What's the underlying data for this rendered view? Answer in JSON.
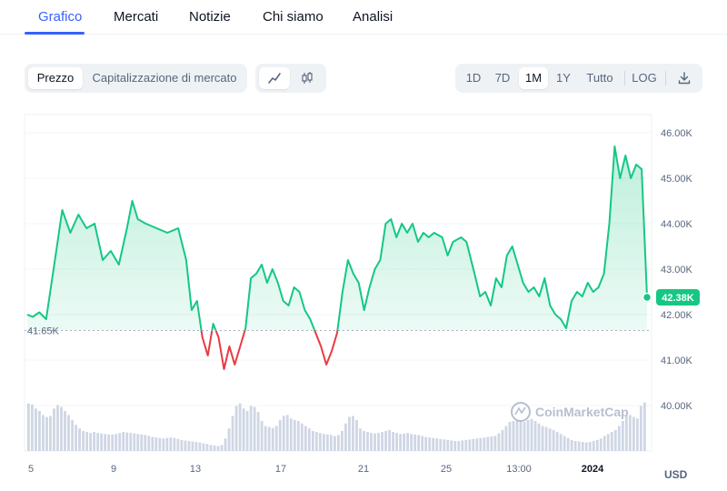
{
  "tabs": [
    {
      "label": "Grafico",
      "active": true
    },
    {
      "label": "Mercati",
      "active": false
    },
    {
      "label": "Notizie",
      "active": false
    },
    {
      "label": "Chi siamo",
      "active": false
    },
    {
      "label": "Analisi",
      "active": false
    }
  ],
  "toolbar": {
    "price_label": "Prezzo",
    "mcap_label": "Capitalizzazione di mercato",
    "line_icon": "line-chart-icon",
    "candle_icon": "candlestick-icon",
    "ranges": [
      "1D",
      "7D",
      "1M",
      "1Y",
      "Tutto"
    ],
    "active_range": "1M",
    "log_label": "LOG",
    "download_icon": "download-icon"
  },
  "chart_data": {
    "type": "area",
    "currency": "USD",
    "x_ticks": [
      "5",
      "9",
      "13",
      "17",
      "21",
      "25",
      "13:00",
      "2024"
    ],
    "y_ticks": [
      "40.00K",
      "41.00K",
      "42.00K",
      "43.00K",
      "44.00K",
      "45.00K",
      "46.00K"
    ],
    "ylim": [
      40000,
      46000
    ],
    "baseline_label": "41.65K",
    "baseline_value": 41650,
    "current_label": "42.38K",
    "current_value": 42380,
    "colors": {
      "up": "#16c784",
      "down": "#ea3943",
      "volume": "#cfd6e4"
    },
    "watermark": "CoinMarketCap",
    "series": [
      {
        "t": 0.0,
        "v": 42000
      },
      {
        "t": 0.2,
        "v": 41950
      },
      {
        "t": 0.45,
        "v": 42050
      },
      {
        "t": 0.7,
        "v": 41900
      },
      {
        "t": 1.0,
        "v": 43100
      },
      {
        "t": 1.3,
        "v": 44300
      },
      {
        "t": 1.6,
        "v": 43800
      },
      {
        "t": 1.9,
        "v": 44200
      },
      {
        "t": 2.2,
        "v": 43900
      },
      {
        "t": 2.5,
        "v": 44000
      },
      {
        "t": 2.8,
        "v": 43200
      },
      {
        "t": 3.1,
        "v": 43400
      },
      {
        "t": 3.4,
        "v": 43100
      },
      {
        "t": 3.7,
        "v": 43900
      },
      {
        "t": 3.9,
        "v": 44500
      },
      {
        "t": 4.1,
        "v": 44100
      },
      {
        "t": 4.4,
        "v": 44000
      },
      {
        "t": 4.8,
        "v": 43900
      },
      {
        "t": 5.2,
        "v": 43800
      },
      {
        "t": 5.6,
        "v": 43900
      },
      {
        "t": 5.9,
        "v": 43200
      },
      {
        "t": 6.1,
        "v": 42100
      },
      {
        "t": 6.3,
        "v": 42300
      },
      {
        "t": 6.5,
        "v": 41500
      },
      {
        "t": 6.7,
        "v": 41100
      },
      {
        "t": 6.9,
        "v": 41800
      },
      {
        "t": 7.1,
        "v": 41500
      },
      {
        "t": 7.3,
        "v": 40800
      },
      {
        "t": 7.5,
        "v": 41300
      },
      {
        "t": 7.7,
        "v": 40900
      },
      {
        "t": 7.9,
        "v": 41300
      },
      {
        "t": 8.1,
        "v": 41700
      },
      {
        "t": 8.3,
        "v": 42800
      },
      {
        "t": 8.5,
        "v": 42900
      },
      {
        "t": 8.7,
        "v": 43100
      },
      {
        "t": 8.9,
        "v": 42700
      },
      {
        "t": 9.1,
        "v": 43000
      },
      {
        "t": 9.3,
        "v": 42700
      },
      {
        "t": 9.5,
        "v": 42300
      },
      {
        "t": 9.7,
        "v": 42200
      },
      {
        "t": 9.9,
        "v": 42600
      },
      {
        "t": 10.1,
        "v": 42500
      },
      {
        "t": 10.3,
        "v": 42100
      },
      {
        "t": 10.5,
        "v": 41900
      },
      {
        "t": 10.7,
        "v": 41600
      },
      {
        "t": 10.9,
        "v": 41300
      },
      {
        "t": 11.1,
        "v": 40900
      },
      {
        "t": 11.3,
        "v": 41200
      },
      {
        "t": 11.5,
        "v": 41600
      },
      {
        "t": 11.7,
        "v": 42500
      },
      {
        "t": 11.9,
        "v": 43200
      },
      {
        "t": 12.1,
        "v": 42900
      },
      {
        "t": 12.3,
        "v": 42700
      },
      {
        "t": 12.5,
        "v": 42100
      },
      {
        "t": 12.7,
        "v": 42600
      },
      {
        "t": 12.9,
        "v": 43000
      },
      {
        "t": 13.1,
        "v": 43200
      },
      {
        "t": 13.3,
        "v": 44000
      },
      {
        "t": 13.5,
        "v": 44100
      },
      {
        "t": 13.7,
        "v": 43700
      },
      {
        "t": 13.9,
        "v": 44000
      },
      {
        "t": 14.1,
        "v": 43800
      },
      {
        "t": 14.3,
        "v": 44000
      },
      {
        "t": 14.5,
        "v": 43600
      },
      {
        "t": 14.7,
        "v": 43800
      },
      {
        "t": 14.9,
        "v": 43700
      },
      {
        "t": 15.1,
        "v": 43800
      },
      {
        "t": 15.4,
        "v": 43700
      },
      {
        "t": 15.6,
        "v": 43300
      },
      {
        "t": 15.8,
        "v": 43600
      },
      {
        "t": 16.1,
        "v": 43700
      },
      {
        "t": 16.3,
        "v": 43600
      },
      {
        "t": 16.6,
        "v": 42900
      },
      {
        "t": 16.8,
        "v": 42400
      },
      {
        "t": 17.0,
        "v": 42500
      },
      {
        "t": 17.2,
        "v": 42200
      },
      {
        "t": 17.4,
        "v": 42800
      },
      {
        "t": 17.6,
        "v": 42600
      },
      {
        "t": 17.8,
        "v": 43300
      },
      {
        "t": 18.0,
        "v": 43500
      },
      {
        "t": 18.2,
        "v": 43100
      },
      {
        "t": 18.4,
        "v": 42700
      },
      {
        "t": 18.6,
        "v": 42500
      },
      {
        "t": 18.8,
        "v": 42600
      },
      {
        "t": 19.0,
        "v": 42400
      },
      {
        "t": 19.2,
        "v": 42800
      },
      {
        "t": 19.4,
        "v": 42200
      },
      {
        "t": 19.6,
        "v": 42000
      },
      {
        "t": 19.8,
        "v": 41900
      },
      {
        "t": 20.0,
        "v": 41700
      },
      {
        "t": 20.2,
        "v": 42300
      },
      {
        "t": 20.4,
        "v": 42500
      },
      {
        "t": 20.6,
        "v": 42400
      },
      {
        "t": 20.8,
        "v": 42700
      },
      {
        "t": 21.0,
        "v": 42500
      },
      {
        "t": 21.2,
        "v": 42600
      },
      {
        "t": 21.4,
        "v": 42900
      },
      {
        "t": 21.6,
        "v": 44000
      },
      {
        "t": 21.8,
        "v": 45700
      },
      {
        "t": 22.0,
        "v": 45000
      },
      {
        "t": 22.2,
        "v": 45500
      },
      {
        "t": 22.4,
        "v": 45000
      },
      {
        "t": 22.6,
        "v": 45300
      },
      {
        "t": 22.8,
        "v": 45200
      },
      {
        "t": 23.0,
        "v": 42380
      }
    ],
    "volume": [
      0.95,
      0.93,
      0.85,
      0.8,
      0.72,
      0.68,
      0.7,
      0.85,
      0.92,
      0.88,
      0.8,
      0.72,
      0.62,
      0.52,
      0.45,
      0.4,
      0.38,
      0.36,
      0.38,
      0.36,
      0.35,
      0.34,
      0.33,
      0.33,
      0.34,
      0.36,
      0.38,
      0.37,
      0.36,
      0.35,
      0.34,
      0.33,
      0.32,
      0.3,
      0.28,
      0.27,
      0.26,
      0.25,
      0.26,
      0.27,
      0.26,
      0.24,
      0.22,
      0.21,
      0.2,
      0.19,
      0.18,
      0.17,
      0.15,
      0.14,
      0.12,
      0.11,
      0.1,
      0.12,
      0.25,
      0.45,
      0.7,
      0.9,
      0.95,
      0.85,
      0.8,
      0.9,
      0.88,
      0.78,
      0.6,
      0.5,
      0.48,
      0.46,
      0.5,
      0.62,
      0.7,
      0.72,
      0.65,
      0.62,
      0.6,
      0.55,
      0.5,
      0.45,
      0.4,
      0.38,
      0.36,
      0.34,
      0.33,
      0.32,
      0.3,
      0.32,
      0.4,
      0.55,
      0.68,
      0.7,
      0.62,
      0.45,
      0.4,
      0.38,
      0.36,
      0.35,
      0.36,
      0.38,
      0.4,
      0.42,
      0.38,
      0.36,
      0.34,
      0.35,
      0.36,
      0.34,
      0.33,
      0.32,
      0.3,
      0.28,
      0.27,
      0.26,
      0.25,
      0.24,
      0.23,
      0.22,
      0.21,
      0.2,
      0.2,
      0.21,
      0.22,
      0.23,
      0.24,
      0.25,
      0.26,
      0.27,
      0.28,
      0.29,
      0.3,
      0.35,
      0.42,
      0.5,
      0.58,
      0.6,
      0.62,
      0.6,
      0.58,
      0.62,
      0.64,
      0.6,
      0.55,
      0.5,
      0.48,
      0.45,
      0.42,
      0.38,
      0.34,
      0.3,
      0.26,
      0.22,
      0.2,
      0.19,
      0.18,
      0.17,
      0.18,
      0.2,
      0.22,
      0.25,
      0.3,
      0.34,
      0.38,
      0.42,
      0.5,
      0.6,
      0.7,
      0.72,
      0.68,
      0.65,
      0.9,
      0.97
    ]
  }
}
